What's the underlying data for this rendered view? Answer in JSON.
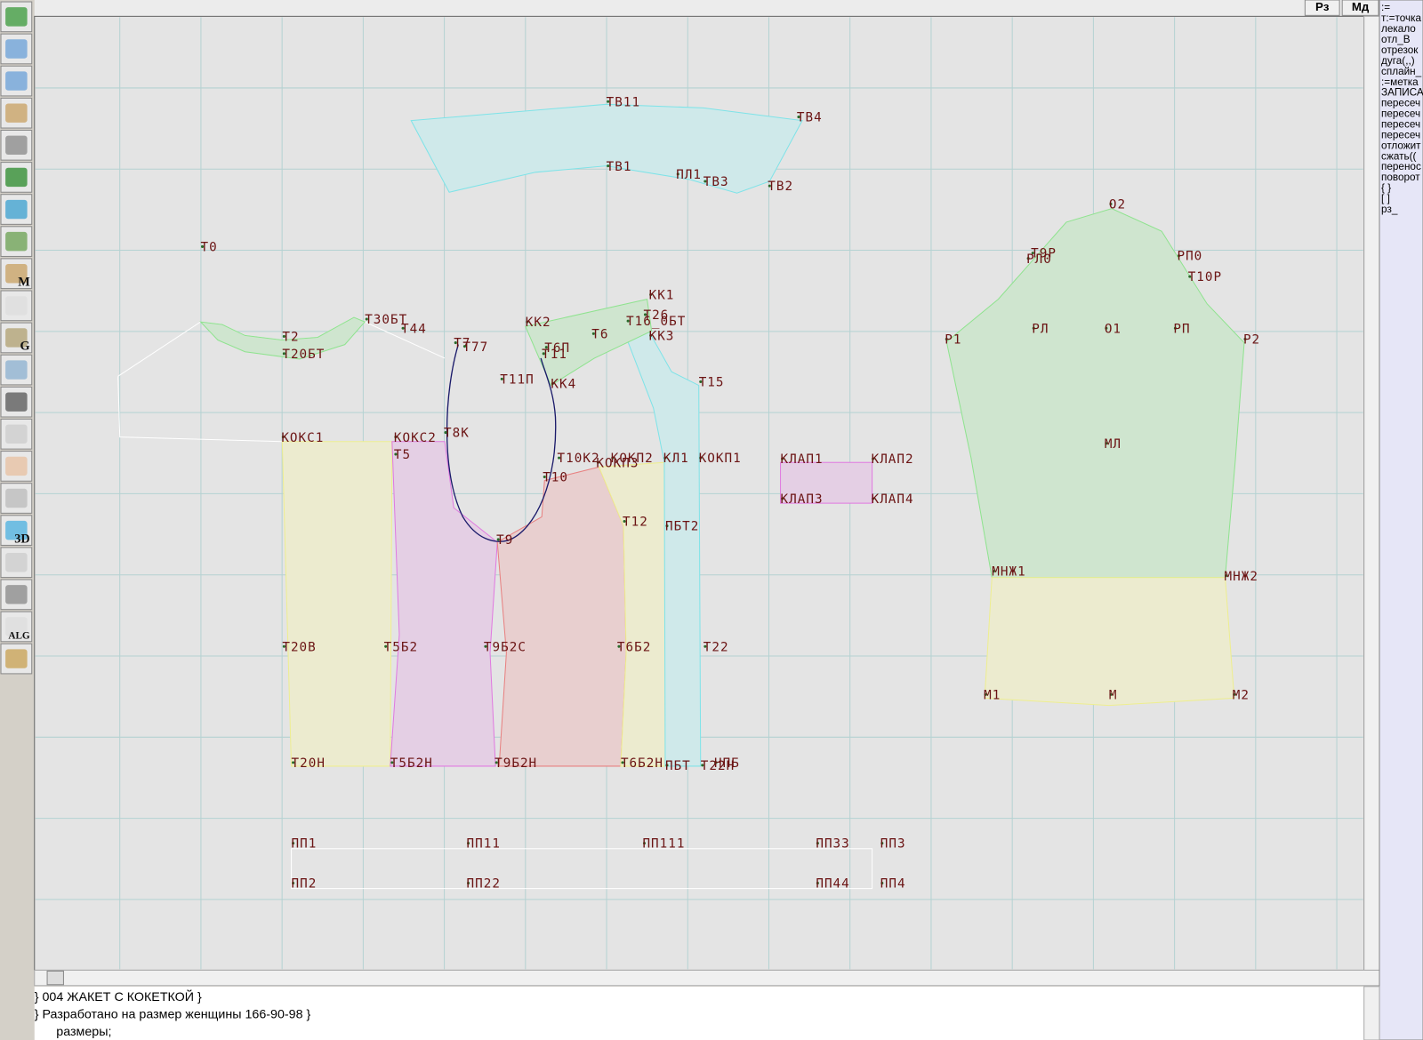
{
  "header": {
    "buttons": [
      "Рз",
      "Мд"
    ]
  },
  "toolbar": {
    "icon_texts": [
      "M",
      "G",
      "3D",
      "ALG"
    ]
  },
  "side_panel": {
    "lines": [
      ":=",
      "т:=точка",
      "лекало",
      "отл_В",
      "отрезок",
      "дуга(,,)",
      "сплайн_",
      ":=метка",
      "ЗАПИСА",
      "пересеч",
      "пересеч",
      "пересеч",
      "пересеч",
      "отложит",
      "сжать((",
      "перенос",
      "поворот",
      "{ }",
      "[ ]",
      "рз_"
    ]
  },
  "canvas": {
    "labels": [
      "ТВ11",
      "ТВ4",
      "ТВ1",
      "ПЛ1",
      "ТВ3",
      "ТВ2",
      "О2",
      "Т0",
      "Т9Р",
      "РЛ0",
      "РП0",
      "Т10Р",
      "КК1",
      "КК2",
      "Т30БТ",
      "Т44",
      "Т2",
      "Т26",
      "Т16_0БТ",
      "КК3",
      "Т6",
      "Т7",
      "Т77",
      "Т6П",
      "Т11",
      "Т20БТ",
      "Р1",
      "РЛ",
      "О1",
      "РП",
      "Р2",
      "Т11П",
      "КК4",
      "Т15",
      "Т8К",
      "КОКС1",
      "КОКС2",
      "Т5",
      "Т10К2",
      "КОКП2",
      "КЛ1",
      "КОКП1",
      "КЛАП1",
      "КЛАП2",
      "КОКП3",
      "Т10",
      "МЛ",
      "КЛАП3",
      "КЛАП4",
      "Т12",
      "ПБТ2",
      "Т9",
      "МНЖ1",
      "МНЖ2",
      "Т20В",
      "Т5Б2",
      "Т9Б2С",
      "Т6Б2",
      "Т22",
      "М1",
      "М",
      "М2",
      "Т20Н",
      "Т5Б2Н",
      "Т9Б2Н",
      "Т6Б2Н",
      "ПБТ",
      "Т22Н",
      "НПБ",
      "ПП1",
      "ПП11",
      "ПП111",
      "ПП33",
      "ПП3",
      "ПП2",
      "ПП22",
      "ПП44",
      "ПП4"
    ]
  },
  "editor": {
    "lines": [
      "} 004 ЖАКЕТ С КОКЕТКОЙ }",
      "} Разработано на размер женщины 166-90-98 }",
      "размеры;"
    ]
  }
}
